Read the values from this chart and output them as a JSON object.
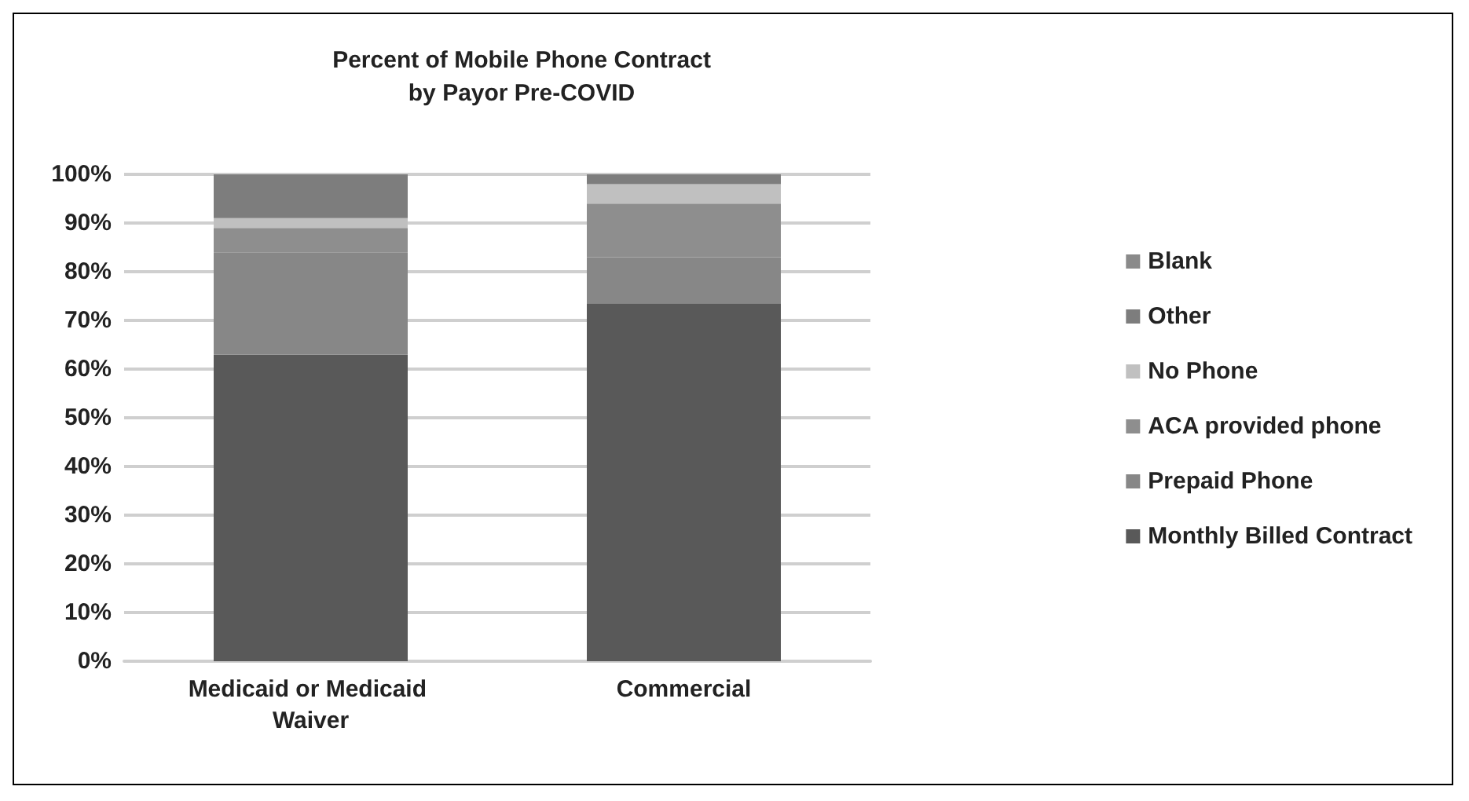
{
  "chart_data": {
    "type": "bar",
    "title": "Percent of Mobile Phone Contract\nby Payor Pre-COVID",
    "stacked": true,
    "legend": "right",
    "grid": "y",
    "categories": [
      "Medicaid or Medicaid Waiver",
      "Commercial"
    ],
    "series": [
      {
        "name": "Monthly Billed Contract",
        "color": "#595959",
        "values": [
          63,
          73.5
        ]
      },
      {
        "name": "Prepaid Phone",
        "color": "#878787",
        "values": [
          21,
          9.5
        ]
      },
      {
        "name": "ACA provided phone",
        "color": "#8e8e8e",
        "values": [
          5,
          11
        ]
      },
      {
        "name": "No Phone",
        "color": "#c0c0c0",
        "values": [
          2,
          4
        ]
      },
      {
        "name": "Other",
        "color": "#7d7d7d",
        "values": [
          9,
          2
        ]
      },
      {
        "name": "Blank",
        "color": "#8a8a8a",
        "values": [
          0,
          0
        ]
      }
    ],
    "ylim": [
      0,
      100
    ],
    "yticks": [
      {
        "value": 0,
        "label": "0%"
      },
      {
        "value": 10,
        "label": "10%"
      },
      {
        "value": 20,
        "label": "20%"
      },
      {
        "value": 30,
        "label": "30%"
      },
      {
        "value": 40,
        "label": "40%"
      },
      {
        "value": 50,
        "label": "50%"
      },
      {
        "value": 60,
        "label": "60%"
      },
      {
        "value": 70,
        "label": "70%"
      },
      {
        "value": 80,
        "label": "80%"
      },
      {
        "value": 90,
        "label": "90%"
      },
      {
        "value": 100,
        "label": "100%"
      }
    ]
  }
}
